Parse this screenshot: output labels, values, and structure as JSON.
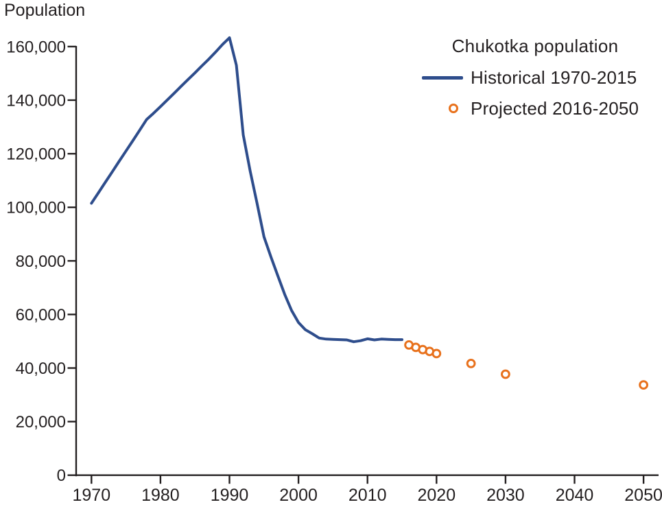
{
  "title": "Population",
  "legend": {
    "title": "Chukotka population",
    "historical_label": "Historical 1970-2015",
    "projected_label": "Projected 2016-2050"
  },
  "colors": {
    "historical": "#2e4d8c",
    "projected": "#e8711c",
    "axis": "#231f20",
    "text": "#231f20"
  },
  "chart_data": {
    "type": "line",
    "title": "Chukotka population",
    "ylabel": "Population",
    "xlabel": "",
    "grid": false,
    "legend_position": "top-right",
    "xlim": [
      1967.4,
      2052.4
    ],
    "ylim": [
      0,
      166000
    ],
    "x_axis": {
      "ticks": [
        1970,
        1980,
        1990,
        2000,
        2010,
        2020,
        2030,
        2040,
        2050
      ]
    },
    "y_axis": {
      "ticks": [
        {
          "value": 0,
          "label": "0"
        },
        {
          "value": 20000,
          "label": "20,000"
        },
        {
          "value": 40000,
          "label": "40,000"
        },
        {
          "value": 60000,
          "label": "60,000"
        },
        {
          "value": 80000,
          "label": "80,000"
        },
        {
          "value": 100000,
          "label": "100,000"
        },
        {
          "value": 120000,
          "label": "120,000"
        },
        {
          "value": 140000,
          "label": "140,000"
        },
        {
          "value": 160000,
          "label": "160,000"
        }
      ]
    },
    "series": [
      {
        "name": "Historical 1970-2015",
        "type": "line",
        "color": "#2e4d8c",
        "points": [
          [
            1970,
            101500
          ],
          [
            1971,
            105400
          ],
          [
            1972,
            109300
          ],
          [
            1973,
            113200
          ],
          [
            1974,
            117100
          ],
          [
            1975,
            121000
          ],
          [
            1976,
            124900
          ],
          [
            1977,
            128800
          ],
          [
            1978,
            132800
          ],
          [
            1979,
            135100
          ],
          [
            1980,
            137600
          ],
          [
            1981,
            140100
          ],
          [
            1982,
            142600
          ],
          [
            1983,
            145200
          ],
          [
            1984,
            147700
          ],
          [
            1985,
            150200
          ],
          [
            1986,
            152800
          ],
          [
            1987,
            155300
          ],
          [
            1988,
            158000
          ],
          [
            1989,
            160800
          ],
          [
            1990,
            163300
          ],
          [
            1991,
            153000
          ],
          [
            1992,
            127000
          ],
          [
            1993,
            113500
          ],
          [
            1994,
            101500
          ],
          [
            1995,
            89000
          ],
          [
            1996,
            81500
          ],
          [
            1997,
            74500
          ],
          [
            1998,
            67500
          ],
          [
            1999,
            61500
          ],
          [
            2000,
            57000
          ],
          [
            2001,
            54300
          ],
          [
            2002,
            52800
          ],
          [
            2003,
            51200
          ],
          [
            2004,
            50800
          ],
          [
            2005,
            50700
          ],
          [
            2006,
            50600
          ],
          [
            2007,
            50500
          ],
          [
            2008,
            49800
          ],
          [
            2009,
            50200
          ],
          [
            2010,
            50900
          ],
          [
            2011,
            50500
          ],
          [
            2012,
            50800
          ],
          [
            2013,
            50700
          ],
          [
            2014,
            50600
          ],
          [
            2015,
            50600
          ]
        ]
      },
      {
        "name": "Projected 2016-2050",
        "type": "scatter",
        "color": "#e8711c",
        "points": [
          [
            2016,
            48600
          ],
          [
            2017,
            47700
          ],
          [
            2018,
            46900
          ],
          [
            2019,
            46200
          ],
          [
            2020,
            45400
          ],
          [
            2025,
            41700
          ],
          [
            2030,
            37700
          ],
          [
            2050,
            33700
          ]
        ]
      }
    ]
  }
}
